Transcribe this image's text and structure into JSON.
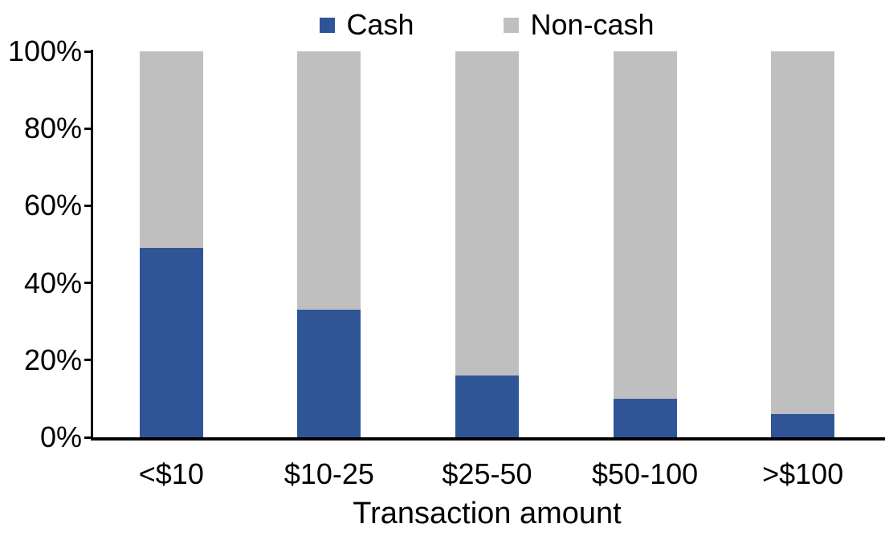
{
  "chart_data": {
    "type": "bar",
    "variant": "stacked-100-percent",
    "title": "",
    "xlabel": "Transaction amount",
    "ylabel": "",
    "categories": [
      "<$10",
      "$10-25",
      "$25-50",
      "$50-100",
      ">$100"
    ],
    "series": [
      {
        "name": "Cash",
        "color": "#2F5597",
        "values": [
          49,
          33,
          16,
          10,
          6
        ]
      },
      {
        "name": "Non-cash",
        "color": "#BFBFBF",
        "values": [
          51,
          67,
          84,
          90,
          94
        ]
      }
    ],
    "ylim": [
      0,
      100
    ],
    "yticks": [
      0,
      20,
      40,
      60,
      80,
      100
    ],
    "ytick_labels": [
      "0%",
      "20%",
      "40%",
      "60%",
      "80%",
      "100%"
    ],
    "legend_position": "top",
    "grid": false
  },
  "colors": {
    "background": "#FFFFFF",
    "axis": "#000000",
    "text": "#000000",
    "cash": "#2F5597",
    "non_cash": "#BFBFBF"
  }
}
